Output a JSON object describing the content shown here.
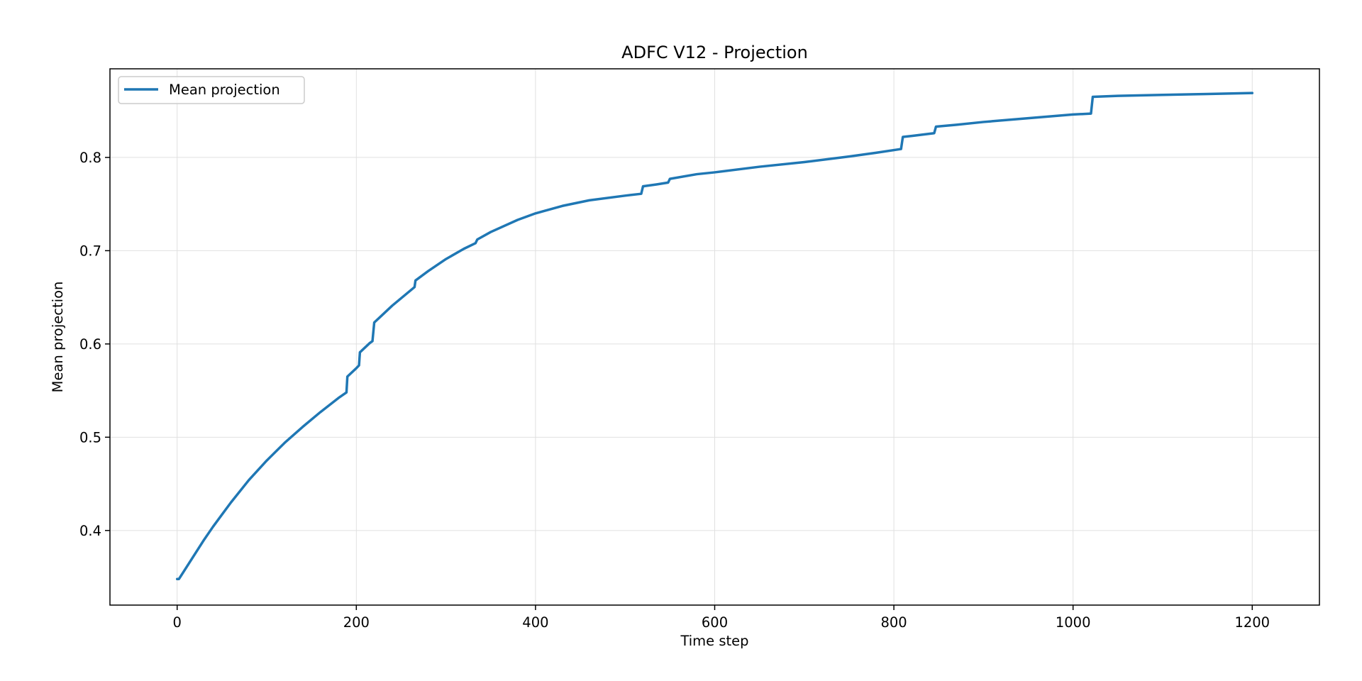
{
  "chart_data": {
    "type": "line",
    "title": "ADFC V12 - Projection",
    "xlabel": "Time step",
    "ylabel": "Mean projection",
    "xlim": [
      -75,
      1275
    ],
    "ylim": [
      0.32,
      0.895
    ],
    "xticks": [
      0,
      200,
      400,
      600,
      800,
      1000,
      1200
    ],
    "xtick_labels": [
      "0",
      "200",
      "400",
      "600",
      "800",
      "1000",
      "1200"
    ],
    "yticks": [
      0.4,
      0.5,
      0.6,
      0.7,
      0.8
    ],
    "ytick_labels": [
      "0.4",
      "0.5",
      "0.6",
      "0.7",
      "0.8"
    ],
    "grid": true,
    "legend_position": "upper-left",
    "series": [
      {
        "name": "Mean projection",
        "color": "#1f77b4",
        "x": [
          0,
          2,
          10,
          20,
          30,
          40,
          50,
          60,
          80,
          100,
          120,
          140,
          160,
          180,
          189,
          190,
          200,
          203,
          204,
          215,
          218,
          220,
          230,
          240,
          250,
          265,
          266,
          280,
          300,
          320,
          333,
          335,
          350,
          380,
          400,
          430,
          460,
          500,
          518,
          520,
          535,
          548,
          550,
          580,
          600,
          650,
          700,
          750,
          780,
          808,
          810,
          820,
          845,
          847,
          870,
          900,
          950,
          1000,
          1020,
          1022,
          1050,
          1100,
          1150,
          1200
        ],
        "y": [
          0.348,
          0.348,
          0.36,
          0.375,
          0.39,
          0.404,
          0.417,
          0.43,
          0.454,
          0.475,
          0.494,
          0.511,
          0.527,
          0.542,
          0.548,
          0.565,
          0.574,
          0.577,
          0.591,
          0.601,
          0.603,
          0.623,
          0.632,
          0.641,
          0.649,
          0.661,
          0.668,
          0.678,
          0.691,
          0.702,
          0.708,
          0.712,
          0.72,
          0.733,
          0.74,
          0.748,
          0.754,
          0.759,
          0.761,
          0.769,
          0.771,
          0.773,
          0.777,
          0.782,
          0.784,
          0.79,
          0.795,
          0.801,
          0.805,
          0.809,
          0.822,
          0.823,
          0.826,
          0.833,
          0.835,
          0.838,
          0.842,
          0.846,
          0.847,
          0.865,
          0.866,
          0.867,
          0.868,
          0.869
        ]
      }
    ]
  }
}
